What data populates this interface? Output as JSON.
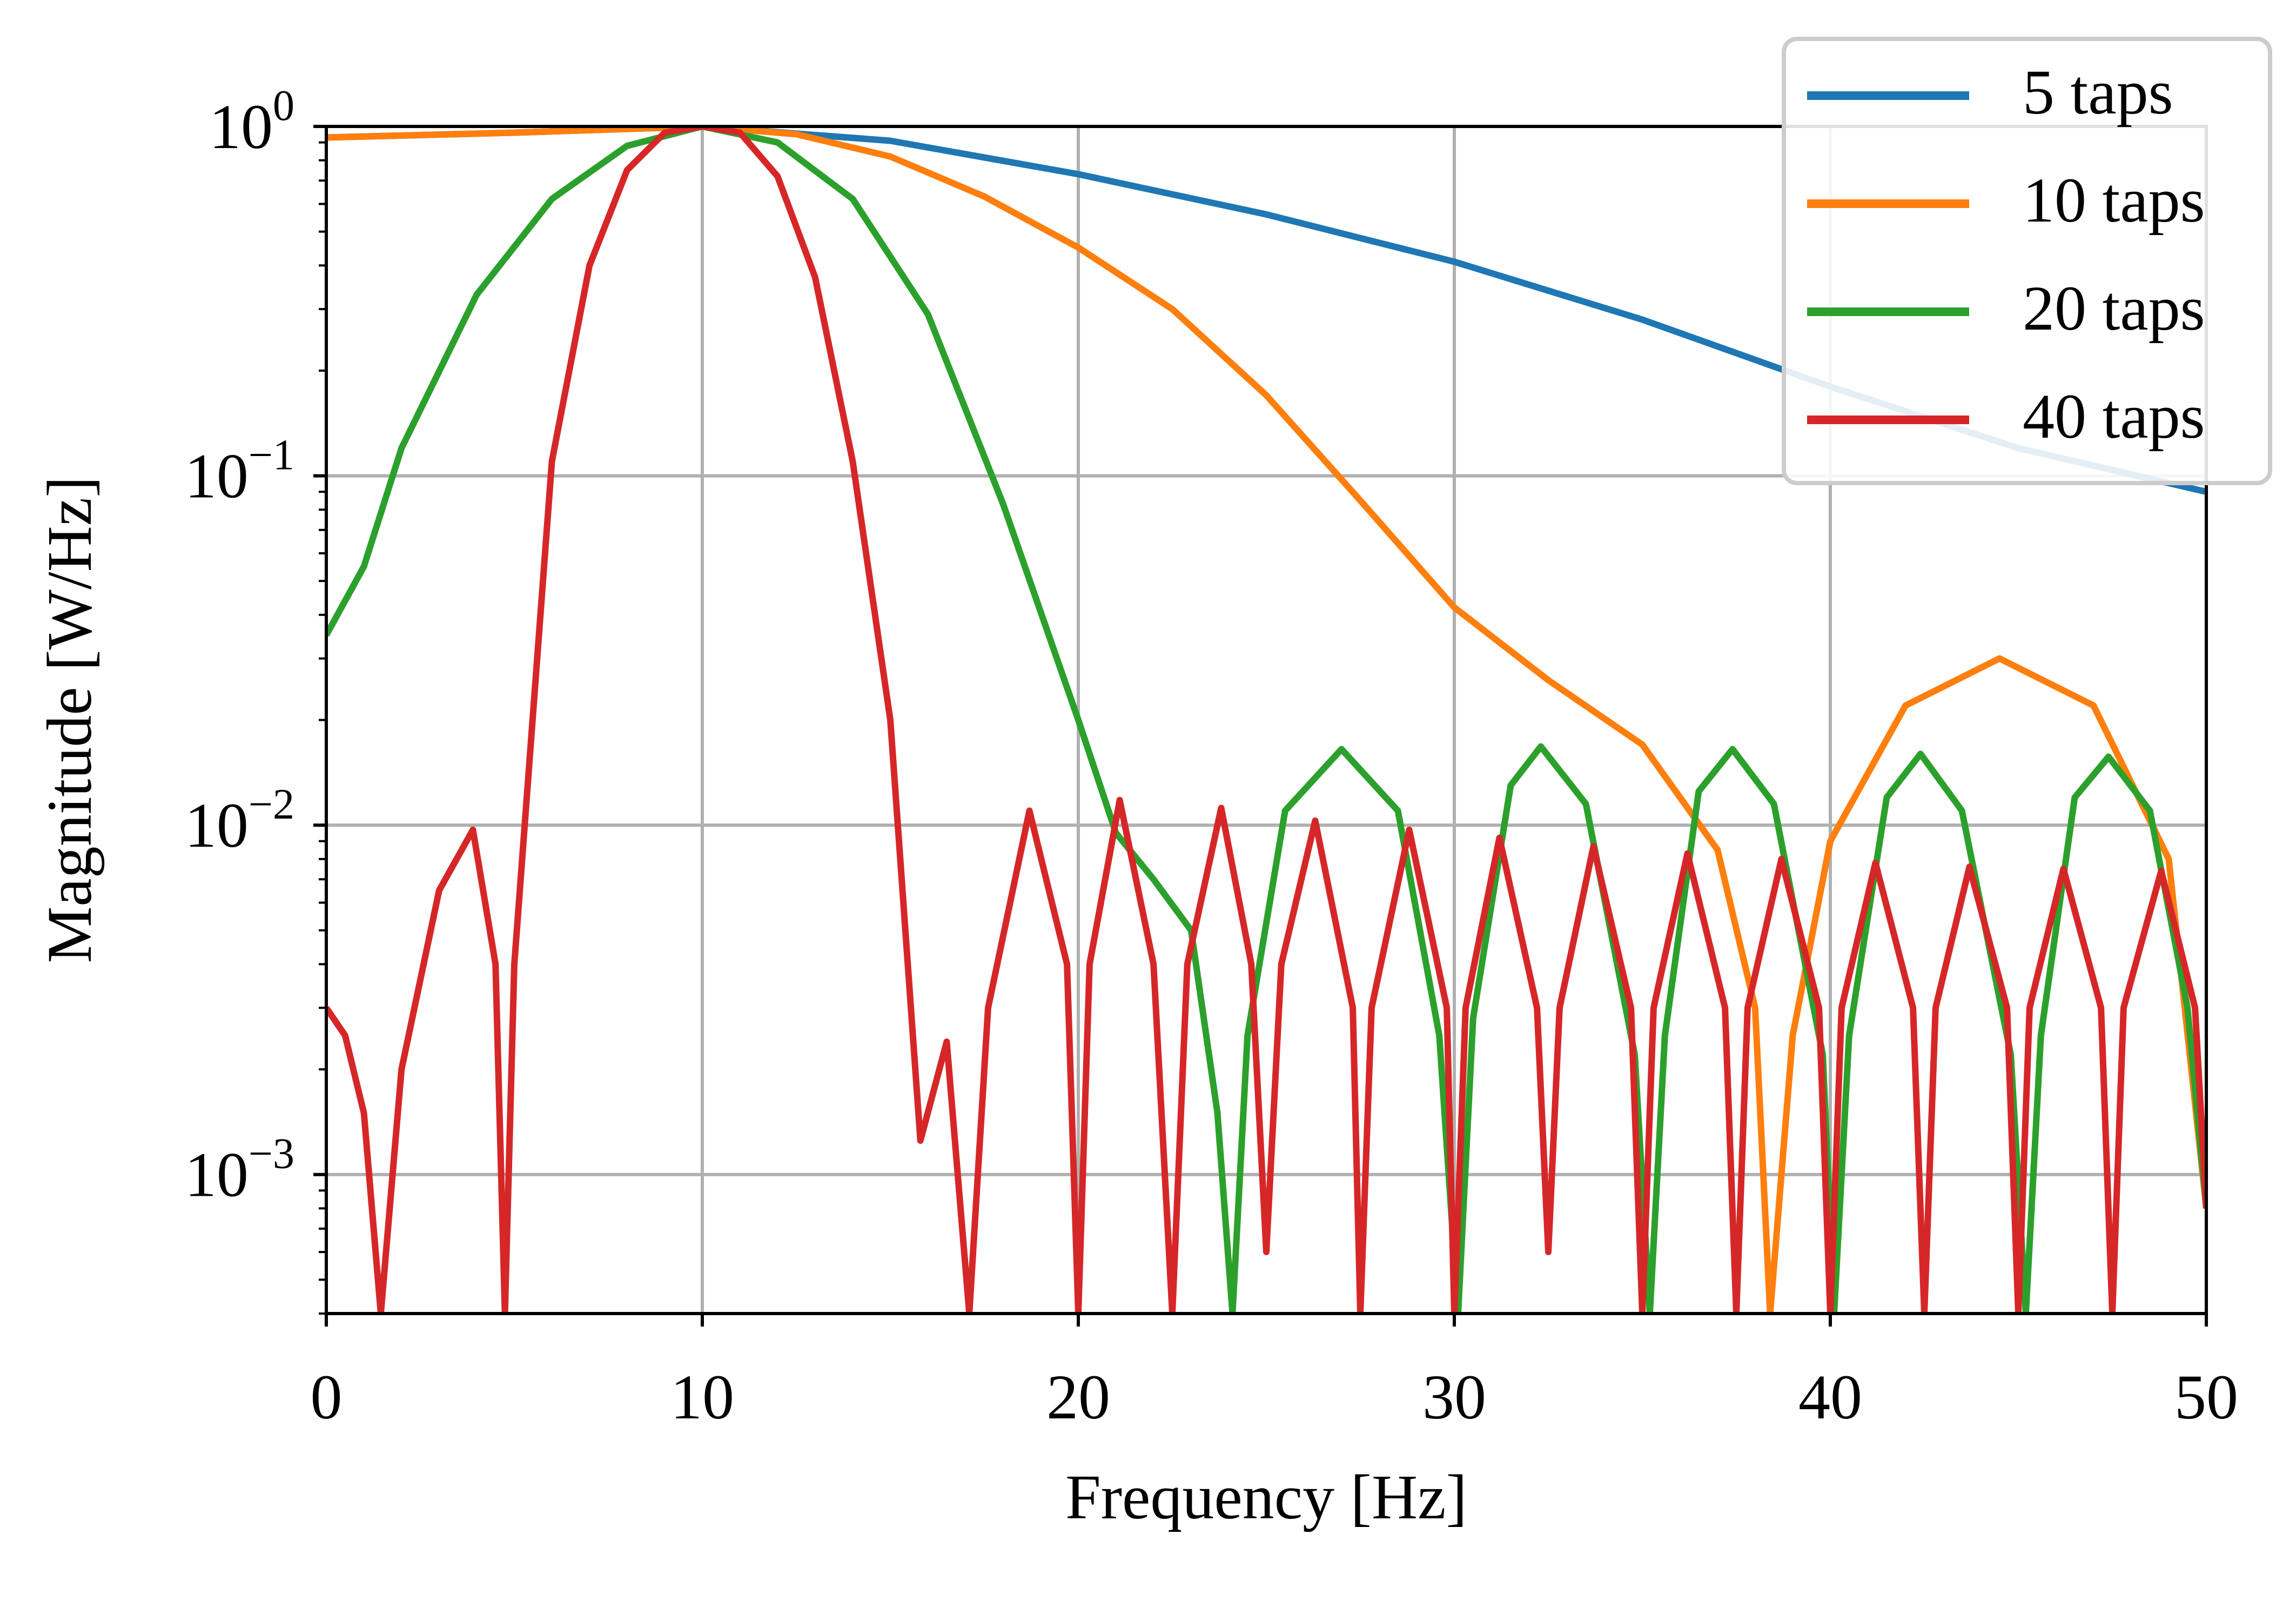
{
  "chart_data": {
    "type": "line",
    "title": "",
    "xlabel": "Frequency [Hz]",
    "ylabel": "Magnitude [W/Hz]",
    "xscale": "linear",
    "yscale": "log",
    "xlim": [
      0,
      50
    ],
    "ylim": [
      0.0004,
      1.0
    ],
    "grid": true,
    "legend_position": "top-right",
    "x_ticks": [
      0,
      10,
      20,
      30,
      40,
      50
    ],
    "x_tick_labels": [
      "0",
      "10",
      "20",
      "30",
      "40",
      "50"
    ],
    "y_ticks": [
      {
        "value": 1,
        "base": "10",
        "exp": "0"
      },
      {
        "value": 0.1,
        "base": "10",
        "exp": "−1"
      },
      {
        "value": 0.01,
        "base": "10",
        "exp": "−2"
      },
      {
        "value": 0.001,
        "base": "10",
        "exp": "−3"
      }
    ],
    "series": [
      {
        "name": "5 taps",
        "color": "#1f77b4",
        "x": [
          0,
          5,
          10,
          15,
          20,
          25,
          30,
          35,
          40,
          45,
          50
        ],
        "values": [
          0.93,
          0.96,
          1.0,
          0.91,
          0.73,
          0.56,
          0.41,
          0.28,
          0.18,
          0.12,
          0.09
        ]
      },
      {
        "name": "10 taps",
        "color": "#ff7f0e",
        "x": [
          0,
          5,
          10,
          12.5,
          15,
          17.5,
          20,
          22.5,
          25,
          27.5,
          30,
          32.5,
          35,
          37,
          38,
          38.4,
          39,
          40,
          42,
          44.5,
          47,
          49,
          50
        ],
        "values": [
          0.93,
          0.96,
          1.0,
          0.95,
          0.82,
          0.63,
          0.45,
          0.3,
          0.17,
          0.085,
          0.042,
          0.026,
          0.017,
          0.0085,
          0.003,
          0.0004,
          0.0025,
          0.009,
          0.022,
          0.03,
          0.022,
          0.008,
          0.0008
        ]
      },
      {
        "name": "20 taps",
        "color": "#2ca02c",
        "x": [
          0,
          1,
          2,
          4,
          6,
          8,
          10,
          12,
          14,
          16,
          18,
          20,
          21,
          22,
          23,
          23.7,
          24.1,
          24.5,
          25.5,
          27,
          28.5,
          29.6,
          30.1,
          30.5,
          31.5,
          32.3,
          33.5,
          34.8,
          35.2,
          35.6,
          36.5,
          37.4,
          38.5,
          39.8,
          40.1,
          40.5,
          41.5,
          42.4,
          43.5,
          44.8,
          45.2,
          45.6,
          46.5,
          47.4,
          48.5,
          49.5,
          50
        ],
        "values": [
          0.035,
          0.055,
          0.12,
          0.33,
          0.62,
          0.88,
          1.0,
          0.9,
          0.62,
          0.29,
          0.083,
          0.02,
          0.0095,
          0.007,
          0.005,
          0.0015,
          0.0004,
          0.0025,
          0.011,
          0.0165,
          0.011,
          0.0025,
          0.0004,
          0.0028,
          0.013,
          0.0168,
          0.0115,
          0.0022,
          0.0004,
          0.0025,
          0.0125,
          0.0165,
          0.0115,
          0.0022,
          0.0004,
          0.0025,
          0.012,
          0.016,
          0.011,
          0.0022,
          0.0004,
          0.0025,
          0.012,
          0.0157,
          0.011,
          0.003,
          0.0008
        ]
      },
      {
        "name": "40 taps",
        "color": "#d62728",
        "x": [
          0,
          0.5,
          1,
          1.45,
          2,
          3,
          3.9,
          4.5,
          4.75,
          5,
          6,
          7,
          8,
          9,
          10,
          11,
          12,
          13,
          14,
          15,
          15.8,
          16.5,
          17.1,
          17.6,
          18.7,
          19.7,
          20.0,
          20.3,
          21.1,
          22.0,
          22.5,
          22.9,
          23.8,
          24.6,
          25.0,
          25.4,
          26.3,
          27.3,
          27.5,
          27.8,
          28.8,
          29.8,
          30.0,
          30.3,
          31.2,
          32.2,
          32.5,
          32.8,
          33.7,
          34.7,
          35.0,
          35.3,
          36.2,
          37.2,
          37.5,
          37.8,
          38.7,
          39.7,
          40.0,
          40.3,
          41.2,
          42.2,
          42.5,
          42.8,
          43.7,
          44.7,
          45.0,
          45.3,
          46.2,
          47.2,
          47.5,
          47.8,
          48.8,
          49.7,
          50
        ],
        "values": [
          0.003,
          0.0025,
          0.0015,
          0.0004,
          0.002,
          0.0065,
          0.0097,
          0.004,
          0.0004,
          0.004,
          0.11,
          0.4,
          0.75,
          0.96,
          1.0,
          0.96,
          0.72,
          0.37,
          0.11,
          0.02,
          0.00125,
          0.0024,
          0.0004,
          0.003,
          0.011,
          0.004,
          0.0004,
          0.004,
          0.0118,
          0.004,
          0.0004,
          0.004,
          0.0112,
          0.004,
          0.0006,
          0.004,
          0.0103,
          0.003,
          0.0004,
          0.003,
          0.0097,
          0.003,
          0.0004,
          0.003,
          0.0092,
          0.003,
          0.0006,
          0.003,
          0.0087,
          0.003,
          0.0004,
          0.003,
          0.0083,
          0.003,
          0.0004,
          0.003,
          0.008,
          0.003,
          0.0004,
          0.003,
          0.0078,
          0.003,
          0.0004,
          0.003,
          0.0076,
          0.003,
          0.0004,
          0.003,
          0.0075,
          0.003,
          0.0004,
          0.003,
          0.0074,
          0.003,
          0.0008
        ]
      }
    ]
  }
}
